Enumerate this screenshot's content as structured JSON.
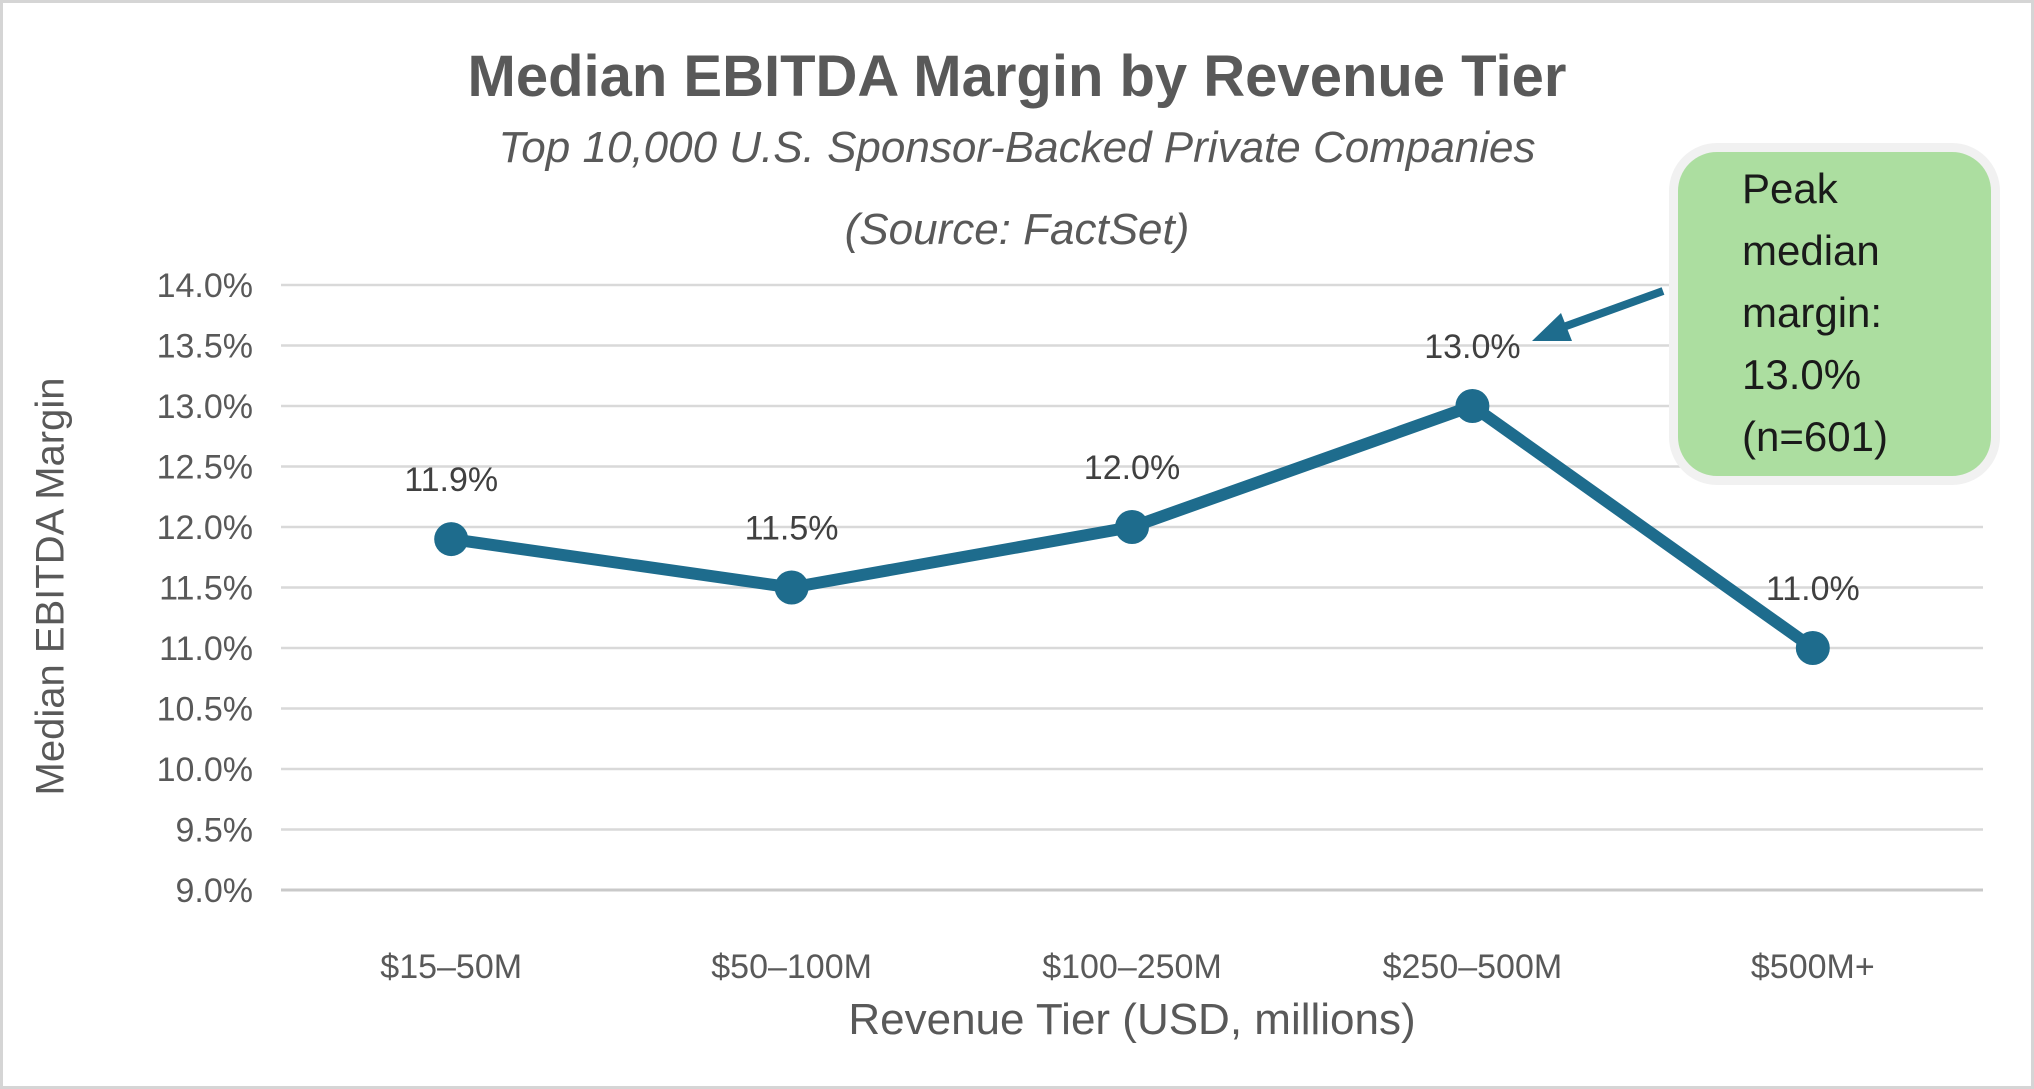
{
  "chart_data": {
    "type": "line",
    "title": "Median EBITDA Margin by Revenue Tier",
    "subtitle": "Top 10,000 U.S. Sponsor-Backed Private Companies",
    "source": "(Source: FactSet)",
    "xlabel": "Revenue Tier (USD, millions)",
    "ylabel": "Median EBITDA Margin",
    "categories": [
      "$15–50M",
      "$50–100M",
      "$100–250M",
      "$250–500M",
      "$500M+"
    ],
    "series": [
      {
        "name": "Median EBITDA Margin",
        "values": [
          11.9,
          11.5,
          12.0,
          13.0,
          11.0
        ]
      }
    ],
    "data_labels": [
      "11.9%",
      "11.5%",
      "12.0%",
      "13.0%",
      "11.0%"
    ],
    "ylim": [
      9.0,
      14.0
    ],
    "ytick_step": 0.5,
    "ytick_labels_top_to_bottom": [
      "14.0%",
      "13.5%",
      "13.0%",
      "12.5%",
      "12.0%",
      "11.5%",
      "11.0%",
      "10.5%",
      "10.0%",
      "9.5%",
      "9.0%"
    ],
    "grid": "horizontal",
    "legend": "none",
    "colors": {
      "line": "#1e6c8d",
      "marker": "#1e6c8d",
      "grid": "#d9d9d9",
      "axis_text": "#595959",
      "data_label_text": "#404040"
    },
    "annotation": {
      "lines": [
        "Peak",
        "median",
        "margin:",
        "13.0%",
        "(n=601)"
      ],
      "fill": "#acdea0",
      "border": "#f1f1f1",
      "text_color": "#1a1a1a",
      "arrow_color": "#1e6c8d",
      "points_to": "13.0% data point"
    }
  }
}
